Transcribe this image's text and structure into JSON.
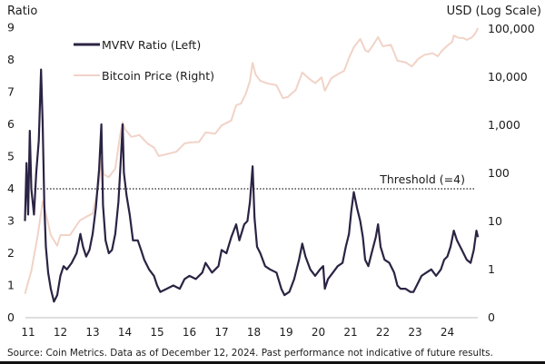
{
  "chart_data": {
    "type": "line",
    "left_axis_title": "Ratio",
    "right_axis_title": "USD (Log Scale)",
    "left_ylim": [
      0,
      9
    ],
    "left_ticks": [
      "0",
      "1",
      "2",
      "3",
      "4",
      "5",
      "6",
      "7",
      "8",
      "9"
    ],
    "right_scale": "log",
    "right_ticks": [
      {
        "value": 0.1,
        "label": "0"
      },
      {
        "value": 1,
        "label": "1"
      },
      {
        "value": 10,
        "label": "10"
      },
      {
        "value": 100,
        "label": "100"
      },
      {
        "value": 1000,
        "label": "1,000"
      },
      {
        "value": 10000,
        "label": "10,000"
      },
      {
        "value": 100000,
        "label": "100,000"
      }
    ],
    "x_ticks": [
      {
        "value": 2011,
        "label": "11"
      },
      {
        "value": 2012,
        "label": "12"
      },
      {
        "value": 2013,
        "label": "13"
      },
      {
        "value": 2014,
        "label": "14"
      },
      {
        "value": 2015,
        "label": "15"
      },
      {
        "value": 2016,
        "label": "16"
      },
      {
        "value": 2017,
        "label": "17"
      },
      {
        "value": 2018,
        "label": "18"
      },
      {
        "value": 2019,
        "label": "19"
      },
      {
        "value": 2020,
        "label": "20"
      },
      {
        "value": 2021,
        "label": "21"
      },
      {
        "value": 2022,
        "label": "22"
      },
      {
        "value": 2023,
        "label": "23"
      },
      {
        "value": 2024,
        "label": "24"
      }
    ],
    "grid": false,
    "legend_placement": "top-left",
    "threshold": {
      "value": 4,
      "label": "Threshold (=4)",
      "style": "dotted"
    },
    "series": [
      {
        "name": "MVRV Ratio (Left)",
        "axis": "left",
        "color": "#2b2343",
        "points": [
          [
            2010.9,
            3.0
          ],
          [
            2010.95,
            4.8
          ],
          [
            2011.0,
            3.2
          ],
          [
            2011.05,
            5.8
          ],
          [
            2011.1,
            4.0
          ],
          [
            2011.18,
            3.2
          ],
          [
            2011.25,
            4.5
          ],
          [
            2011.33,
            5.5
          ],
          [
            2011.4,
            7.7
          ],
          [
            2011.45,
            6.0
          ],
          [
            2011.5,
            3.5
          ],
          [
            2011.55,
            2.2
          ],
          [
            2011.62,
            1.4
          ],
          [
            2011.7,
            0.9
          ],
          [
            2011.8,
            0.5
          ],
          [
            2011.9,
            0.7
          ],
          [
            2012.0,
            1.3
          ],
          [
            2012.1,
            1.6
          ],
          [
            2012.2,
            1.5
          ],
          [
            2012.35,
            1.7
          ],
          [
            2012.5,
            2.0
          ],
          [
            2012.62,
            2.6
          ],
          [
            2012.7,
            2.2
          ],
          [
            2012.8,
            1.9
          ],
          [
            2012.9,
            2.1
          ],
          [
            2013.0,
            2.6
          ],
          [
            2013.1,
            3.4
          ],
          [
            2013.2,
            4.6
          ],
          [
            2013.27,
            6.0
          ],
          [
            2013.32,
            3.5
          ],
          [
            2013.4,
            2.4
          ],
          [
            2013.5,
            2.0
          ],
          [
            2013.6,
            2.1
          ],
          [
            2013.7,
            2.6
          ],
          [
            2013.8,
            3.6
          ],
          [
            2013.88,
            5.0
          ],
          [
            2013.93,
            6.0
          ],
          [
            2013.97,
            4.5
          ],
          [
            2014.05,
            3.8
          ],
          [
            2014.15,
            3.2
          ],
          [
            2014.25,
            2.4
          ],
          [
            2014.4,
            2.4
          ],
          [
            2014.5,
            2.1
          ],
          [
            2014.6,
            1.8
          ],
          [
            2014.75,
            1.5
          ],
          [
            2014.9,
            1.3
          ],
          [
            2015.0,
            1.0
          ],
          [
            2015.1,
            0.8
          ],
          [
            2015.3,
            0.9
          ],
          [
            2015.5,
            1.0
          ],
          [
            2015.7,
            0.9
          ],
          [
            2015.85,
            1.2
          ],
          [
            2016.0,
            1.3
          ],
          [
            2016.2,
            1.2
          ],
          [
            2016.4,
            1.4
          ],
          [
            2016.5,
            1.7
          ],
          [
            2016.7,
            1.4
          ],
          [
            2016.9,
            1.6
          ],
          [
            2017.0,
            2.1
          ],
          [
            2017.15,
            2.0
          ],
          [
            2017.3,
            2.5
          ],
          [
            2017.45,
            2.9
          ],
          [
            2017.55,
            2.4
          ],
          [
            2017.7,
            2.9
          ],
          [
            2017.8,
            3.0
          ],
          [
            2017.88,
            3.6
          ],
          [
            2017.96,
            4.7
          ],
          [
            2018.02,
            3.1
          ],
          [
            2018.1,
            2.2
          ],
          [
            2018.2,
            2.0
          ],
          [
            2018.35,
            1.6
          ],
          [
            2018.5,
            1.5
          ],
          [
            2018.7,
            1.4
          ],
          [
            2018.85,
            0.9
          ],
          [
            2018.95,
            0.7
          ],
          [
            2019.1,
            0.8
          ],
          [
            2019.25,
            1.2
          ],
          [
            2019.4,
            1.8
          ],
          [
            2019.5,
            2.3
          ],
          [
            2019.6,
            1.9
          ],
          [
            2019.75,
            1.5
          ],
          [
            2019.9,
            1.3
          ],
          [
            2020.05,
            1.5
          ],
          [
            2020.15,
            1.6
          ],
          [
            2020.2,
            0.9
          ],
          [
            2020.3,
            1.2
          ],
          [
            2020.45,
            1.4
          ],
          [
            2020.6,
            1.6
          ],
          [
            2020.75,
            1.7
          ],
          [
            2020.85,
            2.2
          ],
          [
            2020.95,
            2.6
          ],
          [
            2021.02,
            3.3
          ],
          [
            2021.1,
            3.9
          ],
          [
            2021.2,
            3.4
          ],
          [
            2021.3,
            3.0
          ],
          [
            2021.38,
            2.5
          ],
          [
            2021.45,
            1.8
          ],
          [
            2021.55,
            1.6
          ],
          [
            2021.65,
            2.0
          ],
          [
            2021.78,
            2.5
          ],
          [
            2021.85,
            2.9
          ],
          [
            2021.93,
            2.2
          ],
          [
            2022.05,
            1.8
          ],
          [
            2022.2,
            1.7
          ],
          [
            2022.35,
            1.4
          ],
          [
            2022.45,
            1.0
          ],
          [
            2022.55,
            0.9
          ],
          [
            2022.7,
            0.9
          ],
          [
            2022.85,
            0.8
          ],
          [
            2022.95,
            0.8
          ],
          [
            2023.05,
            1.0
          ],
          [
            2023.2,
            1.3
          ],
          [
            2023.35,
            1.4
          ],
          [
            2023.5,
            1.5
          ],
          [
            2023.65,
            1.3
          ],
          [
            2023.8,
            1.5
          ],
          [
            2023.9,
            1.8
          ],
          [
            2024.0,
            1.9
          ],
          [
            2024.1,
            2.2
          ],
          [
            2024.2,
            2.7
          ],
          [
            2024.3,
            2.4
          ],
          [
            2024.45,
            2.1
          ],
          [
            2024.6,
            1.8
          ],
          [
            2024.72,
            1.7
          ],
          [
            2024.82,
            2.1
          ],
          [
            2024.9,
            2.7
          ],
          [
            2024.95,
            2.5
          ]
        ]
      },
      {
        "name": "Bitcoin Price (Right)",
        "axis": "right",
        "color": "#f1d3c7",
        "points": [
          [
            2010.9,
            0.3
          ],
          [
            2011.1,
            0.9
          ],
          [
            2011.3,
            5
          ],
          [
            2011.45,
            25
          ],
          [
            2011.55,
            14
          ],
          [
            2011.7,
            5
          ],
          [
            2011.9,
            3
          ],
          [
            2012.0,
            5
          ],
          [
            2012.3,
            5
          ],
          [
            2012.6,
            10
          ],
          [
            2012.8,
            12
          ],
          [
            2013.0,
            14
          ],
          [
            2013.2,
            60
          ],
          [
            2013.27,
            200
          ],
          [
            2013.35,
            90
          ],
          [
            2013.5,
            80
          ],
          [
            2013.7,
            120
          ],
          [
            2013.85,
            600
          ],
          [
            2013.93,
            1100
          ],
          [
            2014.0,
            800
          ],
          [
            2014.2,
            550
          ],
          [
            2014.45,
            600
          ],
          [
            2014.7,
            400
          ],
          [
            2014.9,
            330
          ],
          [
            2015.05,
            220
          ],
          [
            2015.3,
            240
          ],
          [
            2015.6,
            270
          ],
          [
            2015.85,
            400
          ],
          [
            2016.0,
            420
          ],
          [
            2016.3,
            430
          ],
          [
            2016.5,
            680
          ],
          [
            2016.8,
            640
          ],
          [
            2017.0,
            950
          ],
          [
            2017.3,
            1200
          ],
          [
            2017.45,
            2500
          ],
          [
            2017.6,
            2700
          ],
          [
            2017.75,
            4300
          ],
          [
            2017.88,
            8000
          ],
          [
            2017.96,
            19000
          ],
          [
            2018.05,
            11000
          ],
          [
            2018.2,
            8000
          ],
          [
            2018.45,
            7000
          ],
          [
            2018.7,
            6500
          ],
          [
            2018.9,
            3500
          ],
          [
            2019.05,
            3700
          ],
          [
            2019.3,
            5200
          ],
          [
            2019.5,
            12000
          ],
          [
            2019.7,
            9000
          ],
          [
            2019.9,
            7200
          ],
          [
            2020.1,
            9500
          ],
          [
            2020.2,
            5000
          ],
          [
            2020.4,
            9000
          ],
          [
            2020.6,
            11000
          ],
          [
            2020.8,
            13000
          ],
          [
            2020.95,
            24000
          ],
          [
            2021.1,
            40000
          ],
          [
            2021.3,
            60000
          ],
          [
            2021.45,
            35000
          ],
          [
            2021.55,
            32000
          ],
          [
            2021.7,
            45000
          ],
          [
            2021.85,
            65000
          ],
          [
            2022.0,
            42000
          ],
          [
            2022.25,
            45000
          ],
          [
            2022.45,
            21000
          ],
          [
            2022.7,
            19500
          ],
          [
            2022.9,
            16000
          ],
          [
            2023.1,
            23000
          ],
          [
            2023.3,
            28000
          ],
          [
            2023.55,
            30000
          ],
          [
            2023.7,
            26000
          ],
          [
            2023.85,
            35000
          ],
          [
            2024.0,
            43000
          ],
          [
            2024.15,
            52000
          ],
          [
            2024.2,
            70000
          ],
          [
            2024.35,
            63000
          ],
          [
            2024.5,
            62000
          ],
          [
            2024.6,
            57000
          ],
          [
            2024.75,
            63000
          ],
          [
            2024.85,
            75000
          ],
          [
            2024.95,
            100000
          ]
        ]
      }
    ]
  },
  "footer": {
    "source": "Source: Coin Metrics. Data as of December 12, 2024. Past performance not indicative of future results."
  }
}
